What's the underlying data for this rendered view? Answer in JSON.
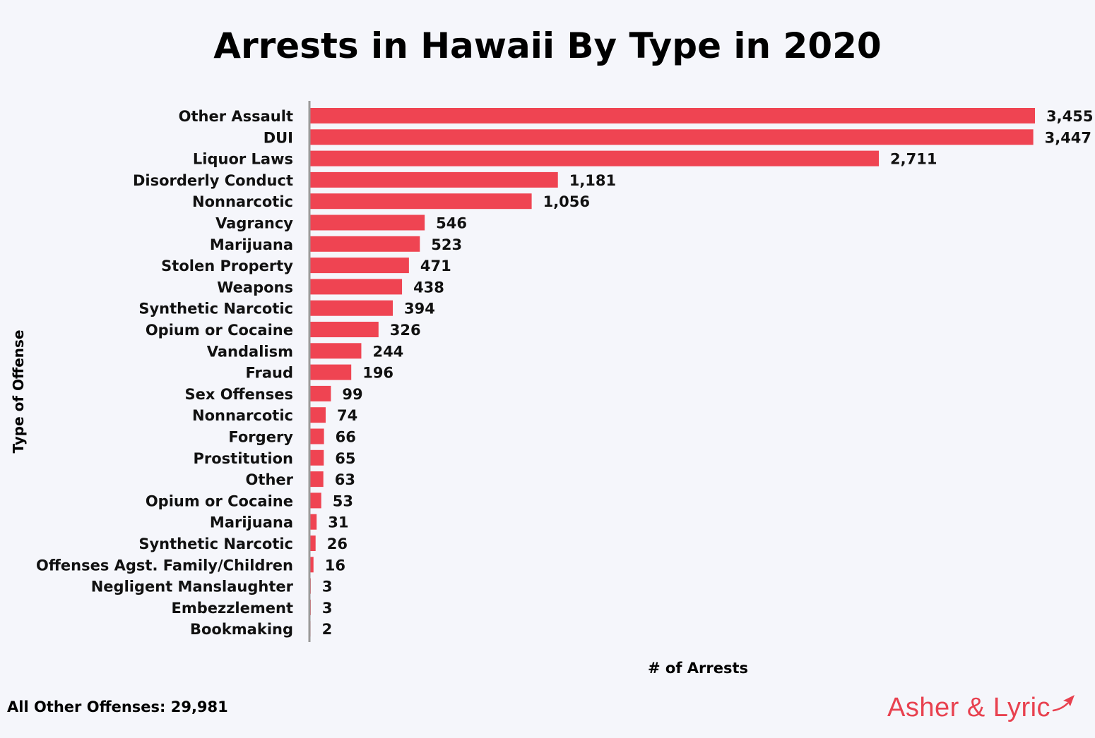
{
  "chart_data": {
    "type": "bar",
    "orientation": "horizontal",
    "title": "Arrests in Hawaii By Type in 2020",
    "xlabel": "# of Arrests",
    "ylabel": "Type of Offense",
    "categories": [
      "Other Assault",
      "DUI",
      "Liquor Laws",
      "Disorderly Conduct",
      "Nonnarcotic",
      "Vagrancy",
      "Marijuana",
      "Stolen Property",
      "Weapons",
      "Synthetic Narcotic",
      "Opium or Cocaine",
      "Vandalism",
      "Fraud",
      "Sex Offenses",
      "Nonnarcotic",
      "Forgery",
      "Prostitution",
      "Other",
      "Opium or Cocaine",
      "Marijuana",
      "Synthetic Narcotic",
      "Offenses Agst. Family/Children",
      "Negligent Manslaughter",
      "Embezzlement",
      "Bookmaking"
    ],
    "values": [
      3455,
      3447,
      2711,
      1181,
      1056,
      546,
      523,
      471,
      438,
      394,
      326,
      244,
      196,
      99,
      74,
      66,
      65,
      63,
      53,
      31,
      26,
      16,
      3,
      3,
      2
    ],
    "value_labels": [
      "3,455",
      "3,447",
      "2,711",
      "1,181",
      "1,056",
      "546",
      "523",
      "471",
      "438",
      "394",
      "326",
      "244",
      "196",
      "99",
      "74",
      "66",
      "65",
      "63",
      "53",
      "31",
      "26",
      "16",
      "3",
      "3",
      "2"
    ],
    "xlim": [
      0,
      3455
    ],
    "grid": false,
    "legend": "none",
    "bar_color": "#ef4452",
    "axis_color": "#9a9a9a"
  },
  "footnote": "All Other Offenses: 29,981",
  "brand": {
    "name": "Asher & Lyric",
    "icon": "airplane-icon",
    "color": "#e8414f"
  }
}
